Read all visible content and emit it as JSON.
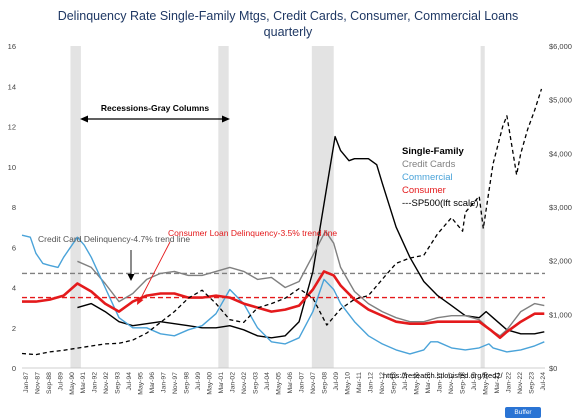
{
  "chart_data": {
    "type": "line",
    "title": "Delinquency Rate Single-Family Mtgs, Credit Cards, Consumer, Commercial Loans",
    "subtitle": "quarterly",
    "x_ticks": [
      "Jan-87",
      "Nov-87",
      "Sep-88",
      "Jul-89",
      "May-90",
      "Mar-91",
      "Jan-92",
      "Nov-92",
      "Sep-93",
      "Jul-94",
      "May-95",
      "Mar-96",
      "Jan-97",
      "Nov-97",
      "Sep-98",
      "Jul-99",
      "May-00",
      "Mar-01",
      "Jan-02",
      "Nov-02",
      "Sep-03",
      "Jul-04",
      "May-05",
      "Mar-06",
      "Jan-07",
      "Nov-07",
      "Sep-08",
      "Jul-09",
      "May-10",
      "Mar-11",
      "Jan-12",
      "Nov-12",
      "Sep-13",
      "Jul-14",
      "May-15",
      "Mar-16",
      "Jan-17",
      "Nov-17",
      "Sep-18",
      "Jul-19",
      "May-20",
      "Mar-21",
      "Jan-22",
      "Nov-22",
      "Sep-23",
      "Jul-24"
    ],
    "y_left": {
      "min": 0,
      "max": 16,
      "ticks": [
        "0",
        "2",
        "4",
        "6",
        "8",
        "10",
        "12",
        "14",
        "16"
      ]
    },
    "y_right": {
      "min": 0,
      "max": 6000,
      "ticks": [
        "$0",
        "$1,000",
        "$2,000",
        "$3,000",
        "$4,000",
        "$5,000",
        "$6,000"
      ]
    },
    "recessions": [
      [
        1990.5,
        1991.25
      ],
      [
        2001.17,
        2001.92
      ],
      [
        2007.92,
        2009.5
      ],
      [
        2020.1,
        2020.4
      ]
    ],
    "series": [
      {
        "name": "Single-Family",
        "color": "#000000",
        "axis": "left",
        "dash": "",
        "points": [
          [
            1991,
            3.0
          ],
          [
            1992,
            3.2
          ],
          [
            1993,
            2.8
          ],
          [
            1994,
            2.3
          ],
          [
            1995,
            2.1
          ],
          [
            1996,
            2.2
          ],
          [
            1997,
            2.3
          ],
          [
            1998,
            2.2
          ],
          [
            1999,
            2.1
          ],
          [
            2000,
            2.0
          ],
          [
            2001,
            2.0
          ],
          [
            2002,
            2.1
          ],
          [
            2003,
            1.9
          ],
          [
            2004,
            1.6
          ],
          [
            2005,
            1.5
          ],
          [
            2006,
            1.6
          ],
          [
            2007,
            2.3
          ],
          [
            2008,
            4.8
          ],
          [
            2009,
            9.0
          ],
          [
            2009.6,
            11.5
          ],
          [
            2010,
            10.8
          ],
          [
            2010.6,
            10.3
          ],
          [
            2011,
            10.4
          ],
          [
            2012,
            10.4
          ],
          [
            2012.6,
            10.1
          ],
          [
            2013,
            9.2
          ],
          [
            2014,
            7.0
          ],
          [
            2015,
            5.5
          ],
          [
            2016,
            4.3
          ],
          [
            2017,
            3.6
          ],
          [
            2018,
            3.1
          ],
          [
            2019,
            2.6
          ],
          [
            2020,
            2.5
          ],
          [
            2020.5,
            2.8
          ],
          [
            2021,
            2.5
          ],
          [
            2022,
            1.9
          ],
          [
            2023,
            1.7
          ],
          [
            2024,
            1.7
          ],
          [
            2024.7,
            1.8
          ]
        ]
      },
      {
        "name": "Credit Cards",
        "color": "#808080",
        "axis": "left",
        "dash": "",
        "points": [
          [
            1991,
            5.3
          ],
          [
            1992,
            5.0
          ],
          [
            1993,
            4.2
          ],
          [
            1994,
            3.3
          ],
          [
            1995,
            3.7
          ],
          [
            1996,
            4.4
          ],
          [
            1997,
            4.7
          ],
          [
            1998,
            4.8
          ],
          [
            1999,
            4.6
          ],
          [
            2000,
            4.6
          ],
          [
            2001,
            4.8
          ],
          [
            2002,
            5.0
          ],
          [
            2003,
            4.8
          ],
          [
            2004,
            4.4
          ],
          [
            2005,
            4.5
          ],
          [
            2006,
            4.0
          ],
          [
            2007,
            4.3
          ],
          [
            2008,
            5.6
          ],
          [
            2008.9,
            6.8
          ],
          [
            2009.5,
            6.2
          ],
          [
            2010,
            5.0
          ],
          [
            2011,
            3.8
          ],
          [
            2012,
            3.2
          ],
          [
            2013,
            2.8
          ],
          [
            2014,
            2.5
          ],
          [
            2015,
            2.3
          ],
          [
            2016,
            2.3
          ],
          [
            2017,
            2.5
          ],
          [
            2018,
            2.6
          ],
          [
            2019,
            2.6
          ],
          [
            2020,
            2.4
          ],
          [
            2020.8,
            1.9
          ],
          [
            2021.5,
            1.6
          ],
          [
            2022,
            1.9
          ],
          [
            2023,
            2.8
          ],
          [
            2024,
            3.2
          ],
          [
            2024.7,
            3.1
          ]
        ]
      },
      {
        "name": "Commercial",
        "color": "#4aa3d9",
        "axis": "left",
        "dash": "",
        "points": [
          [
            1987,
            6.6
          ],
          [
            1987.6,
            6.5
          ],
          [
            1988,
            5.7
          ],
          [
            1988.5,
            5.2
          ],
          [
            1989,
            5.1
          ],
          [
            1989.6,
            5.0
          ],
          [
            1990,
            5.5
          ],
          [
            1991,
            6.5
          ],
          [
            1991.5,
            6.1
          ],
          [
            1992,
            5.5
          ],
          [
            1993,
            4.0
          ],
          [
            1994,
            2.5
          ],
          [
            1995,
            2.0
          ],
          [
            1996,
            2.0
          ],
          [
            1997,
            1.7
          ],
          [
            1998,
            1.6
          ],
          [
            1999,
            1.9
          ],
          [
            2000,
            2.1
          ],
          [
            2001,
            2.7
          ],
          [
            2002,
            3.9
          ],
          [
            2003,
            3.2
          ],
          [
            2004,
            2.0
          ],
          [
            2005,
            1.3
          ],
          [
            2006,
            1.2
          ],
          [
            2007,
            1.5
          ],
          [
            2008,
            2.8
          ],
          [
            2008.8,
            4.4
          ],
          [
            2009.5,
            3.9
          ],
          [
            2010,
            3.2
          ],
          [
            2011,
            2.3
          ],
          [
            2012,
            1.6
          ],
          [
            2013,
            1.2
          ],
          [
            2014,
            0.9
          ],
          [
            2015,
            0.7
          ],
          [
            2016,
            0.9
          ],
          [
            2016.5,
            1.3
          ],
          [
            2017,
            1.3
          ],
          [
            2018,
            1.0
          ],
          [
            2019,
            0.9
          ],
          [
            2020,
            1.0
          ],
          [
            2020.7,
            1.2
          ],
          [
            2021,
            1.0
          ],
          [
            2022,
            0.8
          ],
          [
            2023,
            0.9
          ],
          [
            2024,
            1.1
          ],
          [
            2024.7,
            1.3
          ]
        ]
      },
      {
        "name": "Consumer",
        "color": "#e41a1c",
        "axis": "left",
        "dash": "",
        "points": [
          [
            1987,
            3.3
          ],
          [
            1988,
            3.3
          ],
          [
            1989,
            3.4
          ],
          [
            1990,
            3.6
          ],
          [
            1991,
            4.2
          ],
          [
            1992,
            3.8
          ],
          [
            1993,
            3.2
          ],
          [
            1994,
            2.8
          ],
          [
            1995,
            3.3
          ],
          [
            1996,
            3.6
          ],
          [
            1997,
            3.7
          ],
          [
            1998,
            3.7
          ],
          [
            1999,
            3.5
          ],
          [
            2000,
            3.5
          ],
          [
            2001,
            3.6
          ],
          [
            2002,
            3.5
          ],
          [
            2003,
            3.2
          ],
          [
            2004,
            3.0
          ],
          [
            2005,
            2.8
          ],
          [
            2006,
            2.9
          ],
          [
            2007,
            3.1
          ],
          [
            2008,
            3.9
          ],
          [
            2008.8,
            4.8
          ],
          [
            2009.5,
            4.6
          ],
          [
            2010,
            4.1
          ],
          [
            2011,
            3.4
          ],
          [
            2012,
            2.9
          ],
          [
            2013,
            2.6
          ],
          [
            2014,
            2.3
          ],
          [
            2015,
            2.2
          ],
          [
            2016,
            2.2
          ],
          [
            2017,
            2.3
          ],
          [
            2018,
            2.3
          ],
          [
            2019,
            2.3
          ],
          [
            2020,
            2.3
          ],
          [
            2020.8,
            1.9
          ],
          [
            2021.5,
            1.5
          ],
          [
            2022,
            1.8
          ],
          [
            2023,
            2.3
          ],
          [
            2024,
            2.7
          ],
          [
            2024.7,
            2.7
          ]
        ]
      },
      {
        "name": "---SP500(lft scale)",
        "color": "#000000",
        "axis": "right",
        "dash": "4,3",
        "points": [
          [
            1987,
            270
          ],
          [
            1988,
            250
          ],
          [
            1989,
            300
          ],
          [
            1990,
            330
          ],
          [
            1991,
            370
          ],
          [
            1992,
            410
          ],
          [
            1993,
            450
          ],
          [
            1994,
            460
          ],
          [
            1995,
            520
          ],
          [
            1996,
            650
          ],
          [
            1997,
            850
          ],
          [
            1998,
            1050
          ],
          [
            1999,
            1300
          ],
          [
            2000,
            1450
          ],
          [
            2001,
            1200
          ],
          [
            2002,
            900
          ],
          [
            2003,
            850
          ],
          [
            2004,
            1120
          ],
          [
            2005,
            1200
          ],
          [
            2006,
            1300
          ],
          [
            2007,
            1480
          ],
          [
            2008,
            1300
          ],
          [
            2009,
            800
          ],
          [
            2010,
            1100
          ],
          [
            2011,
            1280
          ],
          [
            2012,
            1350
          ],
          [
            2013,
            1650
          ],
          [
            2014,
            1950
          ],
          [
            2015,
            2050
          ],
          [
            2016,
            2100
          ],
          [
            2017,
            2500
          ],
          [
            2018,
            2800
          ],
          [
            2018.8,
            2550
          ],
          [
            2019,
            2900
          ],
          [
            2020,
            3200
          ],
          [
            2020.3,
            2600
          ],
          [
            2021,
            3800
          ],
          [
            2021.7,
            4500
          ],
          [
            2022,
            4700
          ],
          [
            2022.7,
            3600
          ],
          [
            2023,
            4000
          ],
          [
            2023.5,
            4450
          ],
          [
            2024,
            4800
          ],
          [
            2024.5,
            5200
          ]
        ]
      }
    ],
    "trend_lines": [
      {
        "label": "Credit Card Delinquency-4.7% trend line",
        "value": 4.7,
        "color": "#808080"
      },
      {
        "label": "Consumer Loan Delinquency-3.5% trend line",
        "value": 3.5,
        "color": "#e41a1c"
      }
    ],
    "annotations": {
      "recessions_label": "Recessions-Gray Columns",
      "source": "https://research.stlouisfed.org/fred2/"
    },
    "legend": [
      "Single-Family",
      "Credit Cards",
      "Commercial",
      "Consumer",
      "---SP500(lft scale)"
    ],
    "grid": false
  },
  "badge": "Buffer"
}
